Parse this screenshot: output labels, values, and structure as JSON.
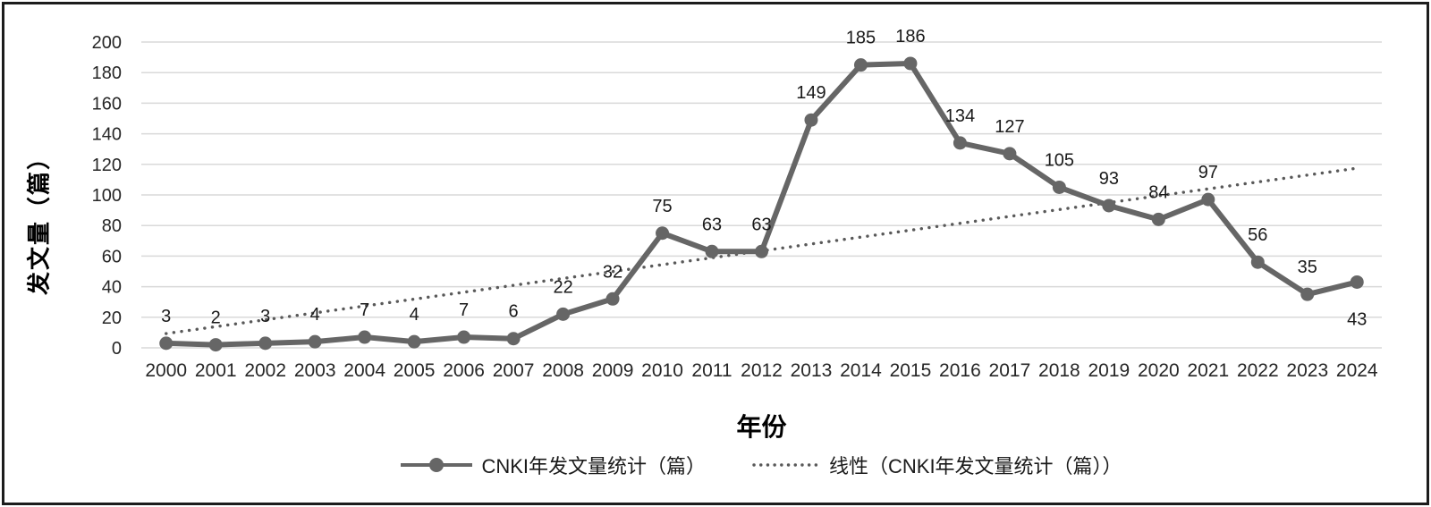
{
  "chart_data": {
    "type": "line",
    "title": "",
    "xlabel": "年份",
    "ylabel": "发文量（篇）",
    "categories": [
      2000,
      2001,
      2002,
      2003,
      2004,
      2005,
      2006,
      2007,
      2008,
      2009,
      2010,
      2011,
      2012,
      2013,
      2014,
      2015,
      2016,
      2017,
      2018,
      2019,
      2020,
      2021,
      2022,
      2023,
      2024
    ],
    "series": [
      {
        "name": "CNKI年发文量统计（篇）",
        "type": "line-with-markers",
        "values": [
          3,
          2,
          3,
          4,
          7,
          4,
          7,
          6,
          22,
          32,
          75,
          63,
          63,
          149,
          185,
          186,
          134,
          127,
          105,
          93,
          84,
          97,
          56,
          35,
          43
        ],
        "color": "#666666",
        "marker": "circle",
        "data_labels": true
      },
      {
        "name": "线性（CNKI年发文量统计（篇））",
        "type": "linear-trendline",
        "style": "dotted",
        "color": "#595959",
        "slope": 4.506,
        "intercept": 9.33
      }
    ],
    "ylim": [
      0,
      200
    ],
    "ytick_step": 20,
    "y_tick_labels": [
      "0",
      "20",
      "40",
      "60",
      "80",
      "100",
      "120",
      "140",
      "160",
      "180",
      "200"
    ],
    "grid": "horizontal",
    "gridline_color": "#d9d9d9",
    "text_color": "#262626",
    "data_label_color": "#1a1a1a",
    "legend_position": "bottom",
    "data_label_below_indices": [
      24
    ]
  }
}
